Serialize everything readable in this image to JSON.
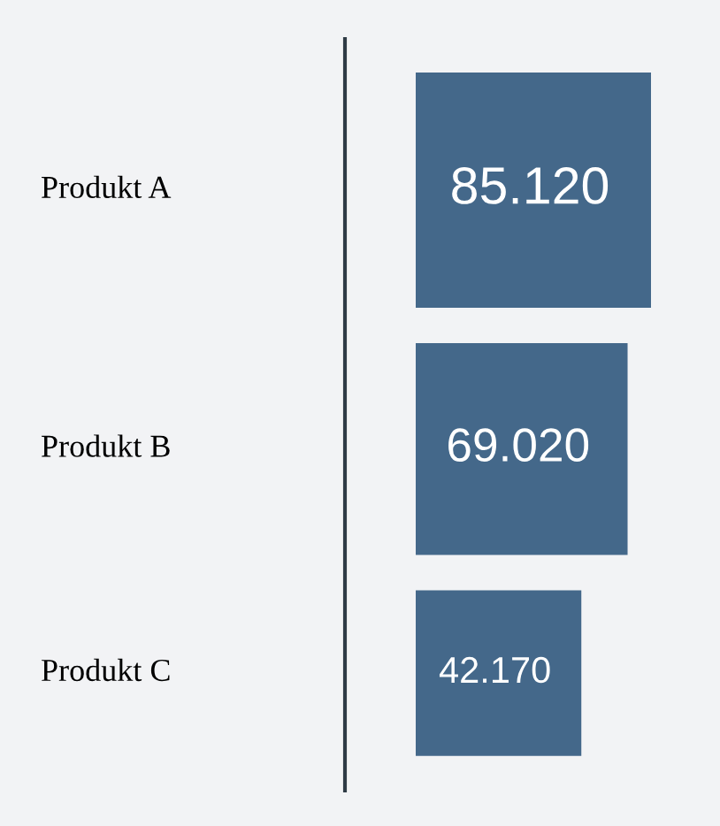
{
  "chart_data": {
    "type": "other",
    "categories": [
      "Produkt A",
      "Produkt B",
      "Produkt C"
    ],
    "values": [
      85120,
      69020,
      42170
    ],
    "value_labels": [
      "85.120",
      "69.020",
      "42.170"
    ],
    "color": "#44688a"
  }
}
